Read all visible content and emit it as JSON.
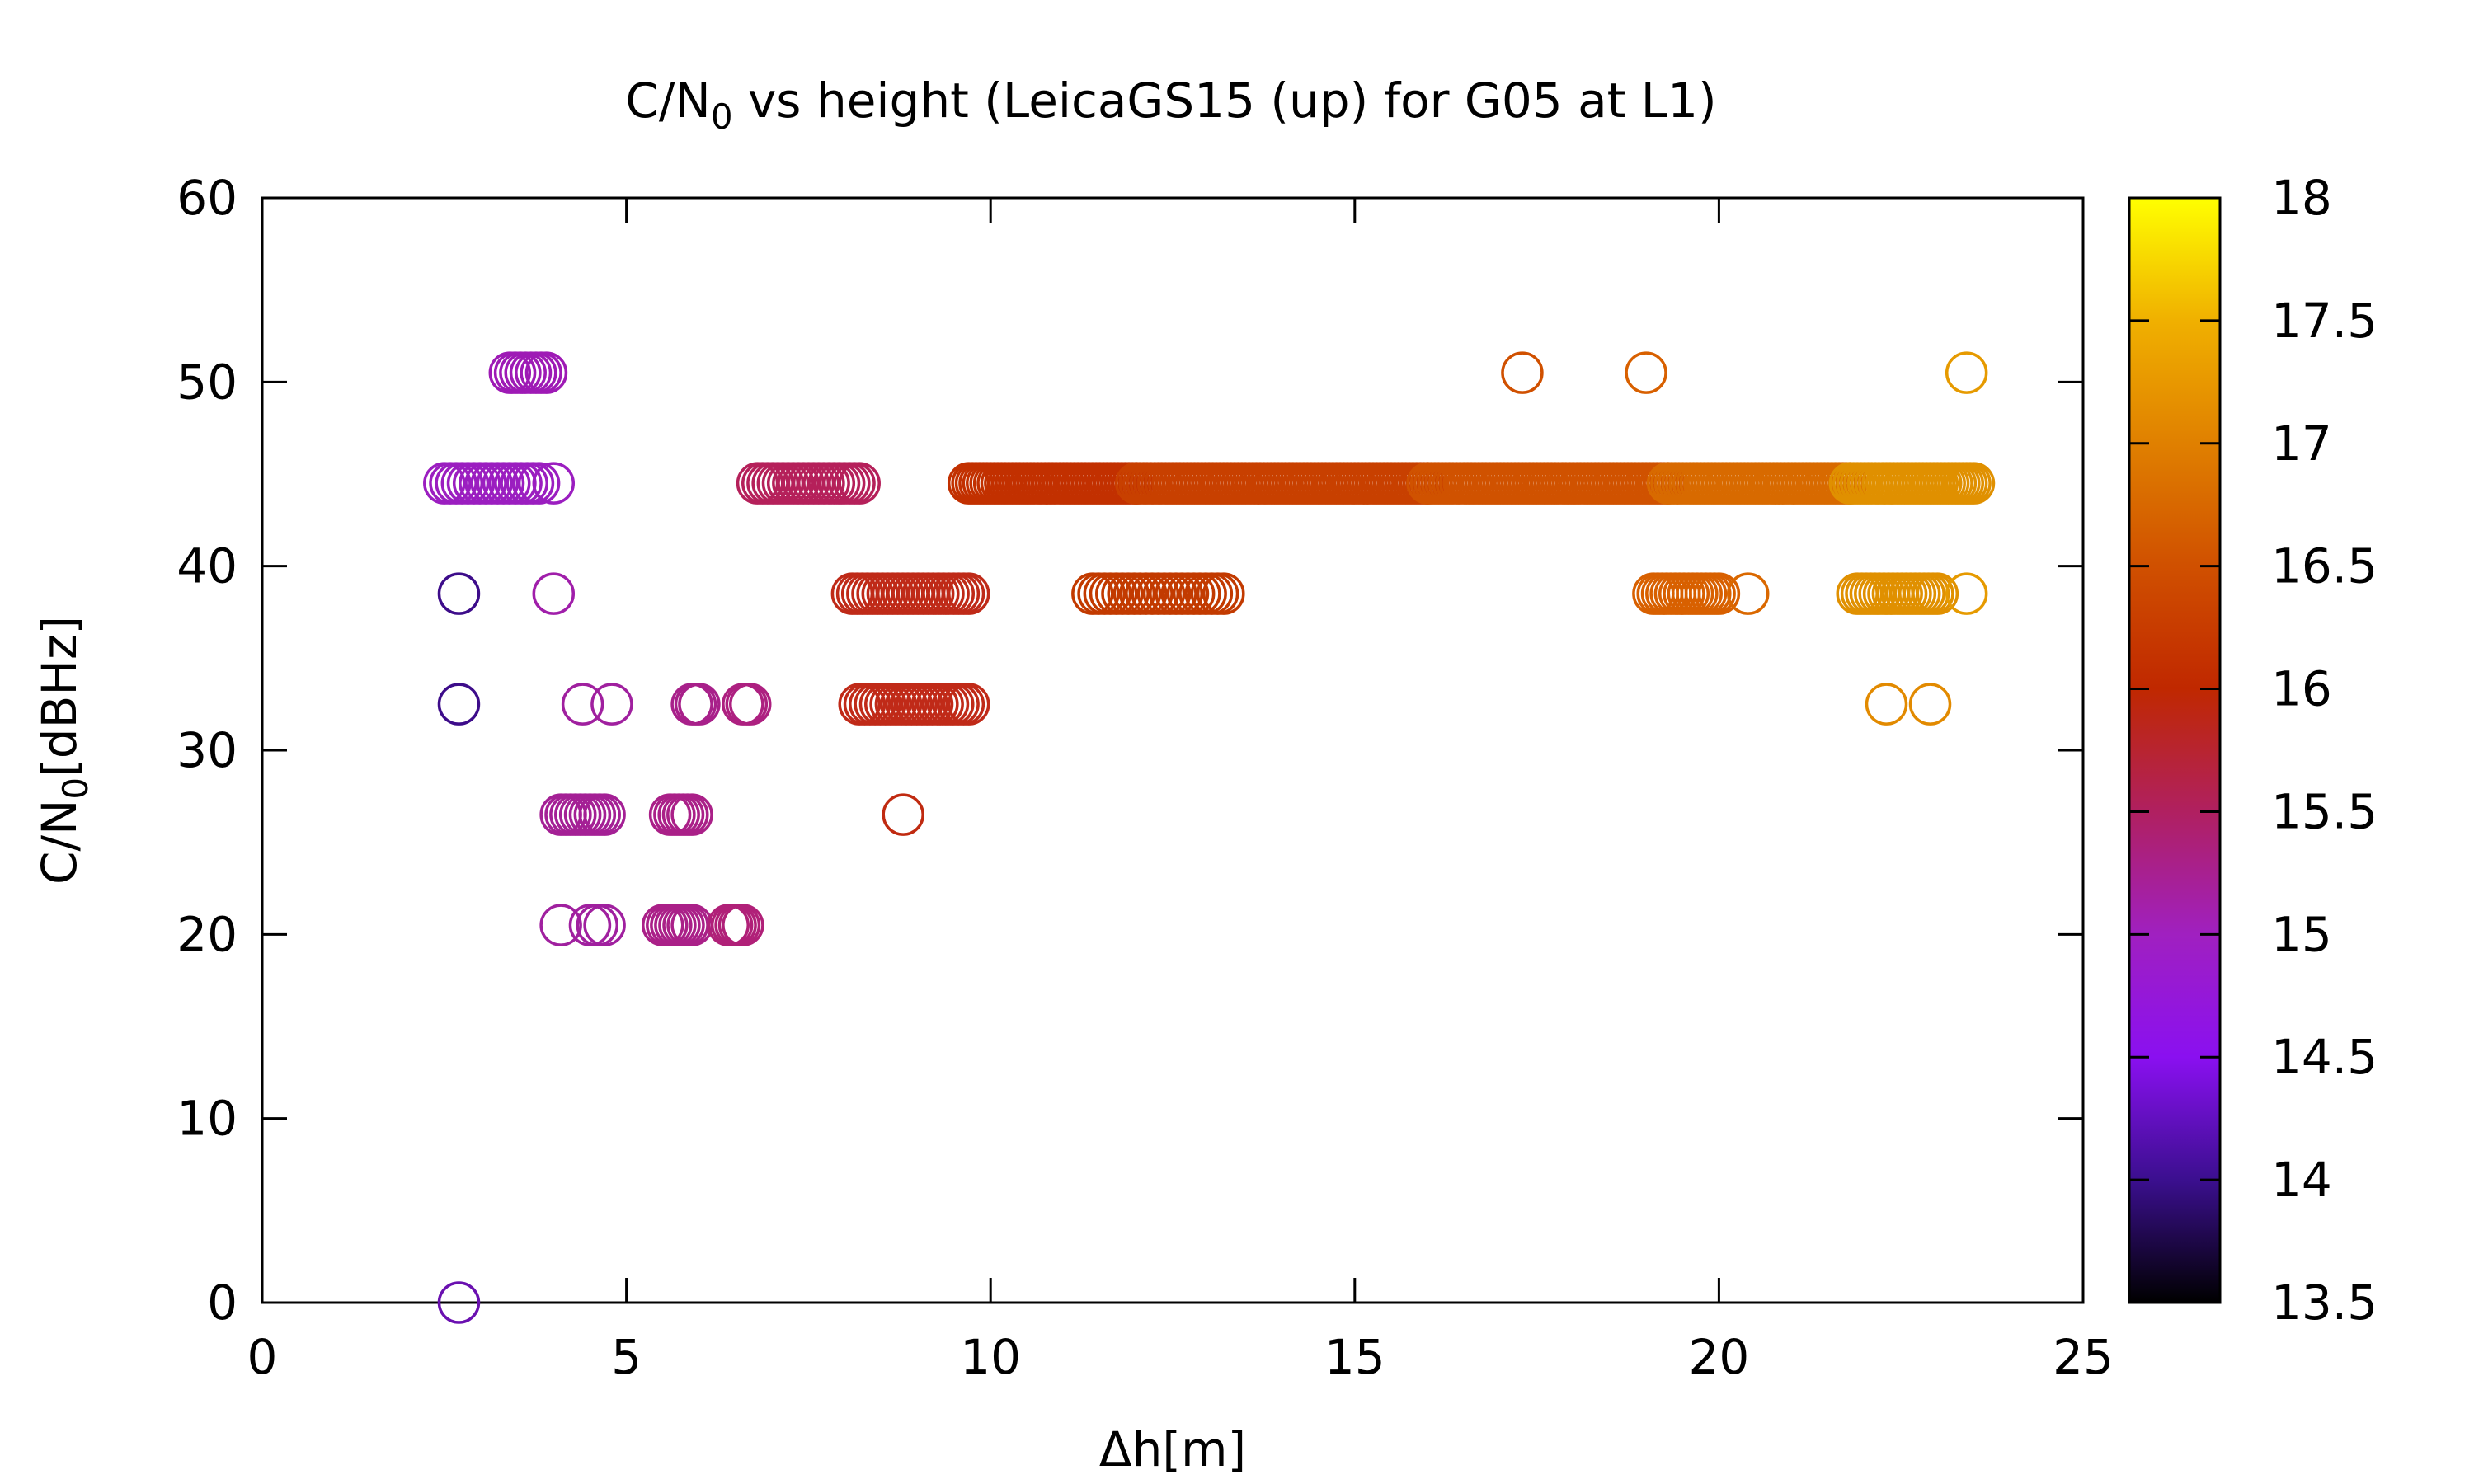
{
  "chart_data": {
    "type": "scatter",
    "title": "C/N₀ vs height (LeicaGS15 (up) for G05 at L1)",
    "title_parts": {
      "main": "C/N",
      "sub": "0",
      "rest": " vs height (LeicaGS15 (up) for G05 at L1)"
    },
    "xlabel": "Δh[m]",
    "ylabel": "C/N₀[dBHz]",
    "ylabel_parts": {
      "main": "C/N",
      "sub": "0",
      "rest": "[dBHz]"
    },
    "xlim": [
      0,
      25
    ],
    "ylim": [
      0,
      60
    ],
    "x_ticks": [
      "0",
      "5",
      "10",
      "15",
      "20",
      "25"
    ],
    "y_ticks": [
      "0",
      "10",
      "20",
      "30",
      "40",
      "50",
      "60"
    ],
    "marker": "open-circle",
    "colorbar": {
      "range": [
        13.5,
        18
      ],
      "ticks": [
        "13.5",
        "14",
        "14.5",
        "15",
        "15.5",
        "16",
        "16.5",
        "17",
        "17.5",
        "18"
      ],
      "palette": [
        "#000000",
        "#3b0f8f",
        "#8a10f0",
        "#a020c0",
        "#b02060",
        "#c02800",
        "#d05000",
        "#e08000",
        "#f0b000",
        "#ffff00"
      ]
    },
    "series": [
      {
        "y": 44.5,
        "x_start": 2.5,
        "x_end": 3.8,
        "step": 0.08,
        "color": "#9b1ec0"
      },
      {
        "y": 44.5,
        "x_start": 4.0,
        "x_end": 4.0,
        "step": 0.1,
        "color": "#9b1ec0"
      },
      {
        "y": 50.5,
        "x_start": 3.4,
        "x_end": 3.9,
        "step": 0.07,
        "color": "#9e1ab5"
      },
      {
        "y": 38.5,
        "x_start": 2.7,
        "x_end": 2.7,
        "step": 0.1,
        "color": "#3d0c8a"
      },
      {
        "y": 38.5,
        "x_start": 4.0,
        "x_end": 4.0,
        "step": 0.1,
        "color": "#a01eaa"
      },
      {
        "y": 32.5,
        "x_start": 2.7,
        "x_end": 2.7,
        "step": 0.1,
        "color": "#3d0c8a"
      },
      {
        "y": 32.5,
        "x_start": 4.4,
        "x_end": 4.4,
        "step": 0.1,
        "color": "#a0209f"
      },
      {
        "y": 32.5,
        "x_start": 4.8,
        "x_end": 4.8,
        "step": 0.1,
        "color": "#a0209f"
      },
      {
        "y": 32.5,
        "x_start": 5.9,
        "x_end": 6.0,
        "step": 0.05,
        "color": "#a8208a"
      },
      {
        "y": 32.5,
        "x_start": 6.6,
        "x_end": 6.7,
        "step": 0.05,
        "color": "#ad2080"
      },
      {
        "y": 26.5,
        "x_start": 4.1,
        "x_end": 4.7,
        "step": 0.07,
        "color": "#a42095"
      },
      {
        "y": 26.5,
        "x_start": 5.6,
        "x_end": 5.9,
        "step": 0.06,
        "color": "#aa2088"
      },
      {
        "y": 20.5,
        "x_start": 4.1,
        "x_end": 4.1,
        "step": 0.1,
        "color": "#a0209f"
      },
      {
        "y": 20.5,
        "x_start": 4.5,
        "x_end": 4.7,
        "step": 0.1,
        "color": "#a0209f"
      },
      {
        "y": 20.5,
        "x_start": 5.5,
        "x_end": 5.9,
        "step": 0.06,
        "color": "#aa2088"
      },
      {
        "y": 20.5,
        "x_start": 6.4,
        "x_end": 6.6,
        "step": 0.05,
        "color": "#b02078"
      },
      {
        "y": 44.5,
        "x_start": 6.8,
        "x_end": 8.2,
        "step": 0.07,
        "color": "#b5205a"
      },
      {
        "y": 38.5,
        "x_start": 8.1,
        "x_end": 9.7,
        "step": 0.07,
        "color": "#bf2a18"
      },
      {
        "y": 32.5,
        "x_start": 8.2,
        "x_end": 9.7,
        "step": 0.07,
        "color": "#c02a18"
      },
      {
        "y": 26.5,
        "x_start": 8.8,
        "x_end": 8.8,
        "step": 0.1,
        "color": "#c02a10"
      },
      {
        "y": 44.5,
        "x_start": 9.7,
        "x_end": 12.0,
        "step": 0.05,
        "color": "#c23000"
      },
      {
        "y": 44.5,
        "x_start": 12.0,
        "x_end": 16.0,
        "step": 0.05,
        "color": "#c84000"
      },
      {
        "y": 44.5,
        "x_start": 16.0,
        "x_end": 19.3,
        "step": 0.05,
        "color": "#d05200"
      },
      {
        "y": 44.5,
        "x_start": 19.3,
        "x_end": 21.8,
        "step": 0.05,
        "color": "#d86a00"
      },
      {
        "y": 44.5,
        "x_start": 21.8,
        "x_end": 23.5,
        "step": 0.05,
        "color": "#e09000"
      },
      {
        "y": 38.5,
        "x_start": 11.4,
        "x_end": 13.2,
        "step": 0.08,
        "color": "#c23a00"
      },
      {
        "y": 38.5,
        "x_start": 19.1,
        "x_end": 20.0,
        "step": 0.06,
        "color": "#d86000"
      },
      {
        "y": 38.5,
        "x_start": 20.4,
        "x_end": 20.4,
        "step": 0.1,
        "color": "#da6800"
      },
      {
        "y": 38.5,
        "x_start": 21.9,
        "x_end": 23.0,
        "step": 0.06,
        "color": "#e09000"
      },
      {
        "y": 38.5,
        "x_start": 23.4,
        "x_end": 23.4,
        "step": 0.1,
        "color": "#e69a00"
      },
      {
        "y": 32.5,
        "x_start": 22.3,
        "x_end": 22.3,
        "step": 0.1,
        "color": "#e28a00"
      },
      {
        "y": 32.5,
        "x_start": 22.9,
        "x_end": 22.9,
        "step": 0.1,
        "color": "#e28a00"
      },
      {
        "y": 50.5,
        "x_start": 17.3,
        "x_end": 17.3,
        "step": 0.1,
        "color": "#d05000"
      },
      {
        "y": 50.5,
        "x_start": 19.0,
        "x_end": 19.0,
        "step": 0.1,
        "color": "#d86000"
      },
      {
        "y": 50.5,
        "x_start": 23.4,
        "x_end": 23.4,
        "step": 0.1,
        "color": "#e69a00"
      },
      {
        "y": 0,
        "x_start": 2.7,
        "x_end": 2.7,
        "step": 0.1,
        "color": "#6a10b0"
      }
    ]
  }
}
